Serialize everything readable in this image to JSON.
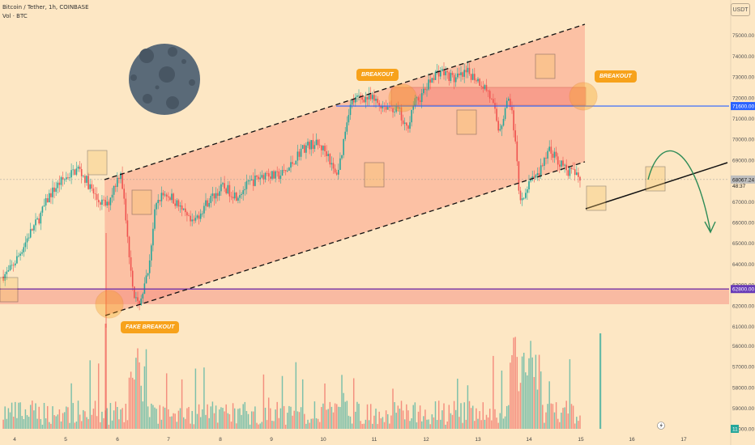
{
  "header": {
    "symbol_line": "Bitcoin / Tether, 1h, COINBASE",
    "volume_line": "Vol · BTC"
  },
  "currency_label": "USDT",
  "annotations": {
    "breakout_left": "BREAKOUT",
    "breakout_right": "BREAKOUT",
    "fake_breakout": "FAKE BREAKOUT"
  },
  "price_tags": {
    "resistance": "71600.00",
    "support": "62800.00",
    "current_price": "68067.24",
    "countdown": "48:37",
    "volume_tag": "11"
  },
  "colors": {
    "background": "#fde7c4",
    "up": "#26a69a",
    "down": "#ef5350",
    "channel_fill": "#fbb49a",
    "zone_fill": "#f5827a",
    "resistance_line": "#2962ff",
    "support_line": "#673ab7",
    "badge": "#f7a21b",
    "arrow": "#2e8b57"
  },
  "chart_data": {
    "type": "candlestick",
    "symbol": "Bitcoin / Tether",
    "timeframe": "1h",
    "exchange": "COINBASE",
    "x_ticks": [
      "4",
      "5",
      "6",
      "7",
      "8",
      "9",
      "10",
      "11",
      "12",
      "13",
      "14",
      "15",
      "16",
      "17"
    ],
    "y_ticks": [
      61000,
      62000,
      63000,
      64000,
      65000,
      66000,
      67000,
      68000,
      69000,
      70000,
      71000,
      72000,
      73000,
      74000,
      75000,
      56000,
      57000,
      58000,
      59000,
      60000
    ],
    "y_tick_labels": [
      "61000.00",
      "62000.00",
      "63000.00",
      "64000.00",
      "65000.00",
      "66000.00",
      "67000.00",
      "68000.00",
      "69000.00",
      "70000.00",
      "71000.00",
      "72000.00",
      "73000.00",
      "74000.00",
      "75000.00",
      "56000.00",
      "57000.00",
      "58000.00",
      "59000.00",
      "60000.00"
    ],
    "ylim": [
      55600,
      75700
    ],
    "resistance_level": 71600,
    "support_level": 62800,
    "current_price": 68067.24,
    "price_path": [
      [
        0,
        63400
      ],
      [
        4,
        63600
      ],
      [
        10,
        64400
      ],
      [
        16,
        65400
      ],
      [
        22,
        66200
      ],
      [
        28,
        67300
      ],
      [
        34,
        67900
      ],
      [
        40,
        68300
      ],
      [
        45,
        68600
      ],
      [
        50,
        68000
      ],
      [
        56,
        67100
      ],
      [
        62,
        66800
      ],
      [
        66,
        67700
      ],
      [
        70,
        68500
      ],
      [
        72,
        67000
      ],
      [
        74,
        65200
      ],
      [
        76,
        63800
      ],
      [
        78,
        62500
      ],
      [
        80,
        62000
      ],
      [
        82,
        62400
      ],
      [
        84,
        62900
      ],
      [
        86,
        63600
      ],
      [
        88,
        65000
      ],
      [
        90,
        66400
      ],
      [
        92,
        67100
      ],
      [
        96,
        67400
      ],
      [
        100,
        67200
      ],
      [
        104,
        66800
      ],
      [
        108,
        66300
      ],
      [
        112,
        65900
      ],
      [
        116,
        66400
      ],
      [
        120,
        66900
      ],
      [
        126,
        67400
      ],
      [
        130,
        67700
      ],
      [
        134,
        67500
      ],
      [
        138,
        67300
      ],
      [
        142,
        67600
      ],
      [
        146,
        67900
      ],
      [
        150,
        68100
      ],
      [
        156,
        68400
      ],
      [
        160,
        68200
      ],
      [
        164,
        68300
      ],
      [
        168,
        68500
      ],
      [
        172,
        69000
      ],
      [
        176,
        69500
      ],
      [
        180,
        69700
      ],
      [
        184,
        69800
      ],
      [
        188,
        69600
      ],
      [
        192,
        69300
      ],
      [
        194,
        68700
      ],
      [
        196,
        68300
      ],
      [
        198,
        68600
      ],
      [
        200,
        69400
      ],
      [
        202,
        70500
      ],
      [
        204,
        71400
      ],
      [
        206,
        71800
      ],
      [
        210,
        72000
      ],
      [
        214,
        72000
      ],
      [
        218,
        71900
      ],
      [
        222,
        71700
      ],
      [
        226,
        71600
      ],
      [
        230,
        71500
      ],
      [
        234,
        71300
      ],
      [
        236,
        70700
      ],
      [
        238,
        70500
      ],
      [
        240,
        71000
      ],
      [
        242,
        71700
      ],
      [
        246,
        72000
      ],
      [
        250,
        72500
      ],
      [
        254,
        73100
      ],
      [
        258,
        73300
      ],
      [
        262,
        73100
      ],
      [
        266,
        72900
      ],
      [
        270,
        73000
      ],
      [
        274,
        73200
      ],
      [
        278,
        73000
      ],
      [
        282,
        72700
      ],
      [
        286,
        72300
      ],
      [
        290,
        71300
      ],
      [
        292,
        70500
      ],
      [
        294,
        70800
      ],
      [
        296,
        71500
      ],
      [
        298,
        71900
      ],
      [
        300,
        71500
      ],
      [
        302,
        69800
      ],
      [
        304,
        67600
      ],
      [
        306,
        67000
      ],
      [
        308,
        67500
      ],
      [
        312,
        68000
      ],
      [
        316,
        68400
      ],
      [
        320,
        69100
      ],
      [
        322,
        69600
      ],
      [
        324,
        69300
      ],
      [
        328,
        68900
      ],
      [
        332,
        68500
      ],
      [
        336,
        68400
      ],
      [
        340,
        68067
      ]
    ],
    "volume_ylim": [
      0,
      100
    ],
    "volume_series": "per-candle relative volume, highest spikes near candle 80 (day 6) and 310 (day 15)"
  }
}
